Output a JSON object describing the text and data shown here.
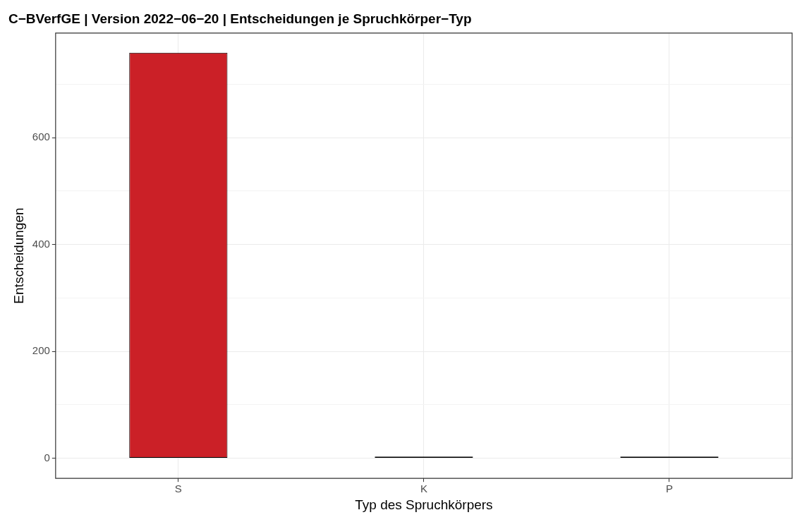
{
  "chart_data": {
    "type": "bar",
    "title": "C−BVerfGE | Version 2022−06−20 | Entscheidungen je Spruchkörper−Typ",
    "xlabel": "Typ des Spruchkörpers",
    "ylabel": "Entscheidungen",
    "categories": [
      "S",
      "K",
      "P"
    ],
    "values": [
      759,
      3,
      3
    ],
    "colors": [
      "#cb2027",
      "#000000",
      "#000000"
    ],
    "ylim": [
      -38,
      796
    ],
    "yticks": [
      0,
      {
        "value": 100,
        "label": null
      },
      200,
      {
        "value": 300,
        "label": null
      },
      400,
      {
        "value": 500,
        "label": null
      },
      600,
      {
        "value": 700,
        "label": null
      }
    ],
    "grid": true
  }
}
